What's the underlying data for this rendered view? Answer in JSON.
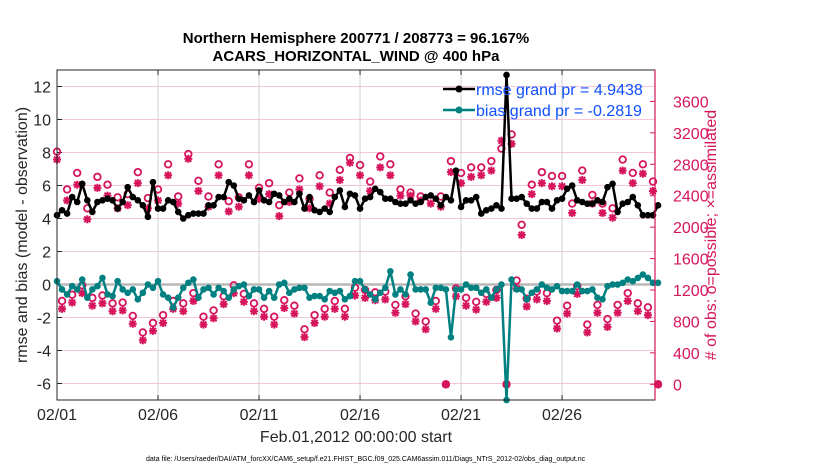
{
  "chart_data": {
    "type": "line",
    "title": [
      "Northern Hemisphere 200771 / 208773 = 96.167%",
      "ACARS_HORIZONTAL_WIND @ 400 hPa"
    ],
    "xlabel": "Feb.01,2012 00:00:00 start",
    "ylabel": "rmse and bias (model - observation)",
    "ylabel_right": "# of obs: o=possible; ×=assimilated",
    "footnote": "data file: /Users/raeder/DAI/ATM_forcXX/CAM6_setup/f.e21.FHIST_BGC.f09_025.CAM6assim.011/Diags_NTrS_2012-02/obs_diag_output.nc",
    "xlim": [
      0,
      29.6
    ],
    "ylim": [
      -7,
      13
    ],
    "ylim_right": [
      -200,
      4000
    ],
    "x_start_day": 0,
    "x_step_days": 0.25,
    "x_ticks": [
      0,
      5,
      10,
      15,
      20,
      25
    ],
    "x_tick_labels": [
      "02/01",
      "02/06",
      "02/11",
      "02/16",
      "02/21",
      "02/26"
    ],
    "y_ticks": [
      12,
      10,
      8,
      6,
      4,
      2,
      0,
      -2,
      -4,
      -6
    ],
    "y_tick_labels": [
      "12",
      "10",
      "8",
      "6",
      "4",
      "2",
      "0",
      "-2",
      "-4",
      "-6"
    ],
    "y_right_ticks": [
      3600,
      3200,
      2800,
      2400,
      2000,
      1600,
      1200,
      800,
      400,
      0
    ],
    "y_right_tick_labels": [
      "3600",
      "3200",
      "2800",
      "2400",
      "2000",
      "1600",
      "1200",
      "800",
      "400",
      "0"
    ],
    "grid": true,
    "legend_position": "top-right",
    "series": [
      {
        "name": "rmse grand pr = 4.9438",
        "color": "#000000",
        "axis": "left",
        "values": [
          4.2,
          4.5,
          4.3,
          5.3,
          5.0,
          6.1,
          5.1,
          4.4,
          5.0,
          5.1,
          5.2,
          5.1,
          4.6,
          5.0,
          5.9,
          5.3,
          5.1,
          4.8,
          4.1,
          6.2,
          4.6,
          4.6,
          5.1,
          5.0,
          4.4,
          4.0,
          4.2,
          4.3,
          4.3,
          4.3,
          4.8,
          4.8,
          5.3,
          5.3,
          6.2,
          6.0,
          5.2,
          5.1,
          5.4,
          5.0,
          5.7,
          5.1,
          5.0,
          5.5,
          5.4,
          5.0,
          5.2,
          5.0,
          5.5,
          4.6,
          5.3,
          4.5,
          4.4,
          4.6,
          4.4,
          5.3,
          5.7,
          4.7,
          5.5,
          5.4,
          4.6,
          5.2,
          5.3,
          5.8,
          5.6,
          5.2,
          5.2,
          5.0,
          4.9,
          4.9,
          5.1,
          4.9,
          5.0,
          5.3,
          5.4,
          5.2,
          4.8,
          5.3,
          5.1,
          6.9,
          4.7,
          5.1,
          5.1,
          5.3,
          4.3,
          4.5,
          4.6,
          4.8,
          4.6,
          12.7,
          5.2,
          5.2,
          5.3,
          4.9,
          4.6,
          4.6,
          5.0,
          5.0,
          4.6,
          5.1,
          5.2,
          5.8,
          6.0,
          5.1,
          5.0,
          4.9,
          4.9,
          5.1,
          5.0,
          5.9,
          6.1,
          4.4,
          4.9,
          5.0,
          5.3,
          4.8,
          4.2,
          4.2,
          4.2,
          4.8
        ]
      },
      {
        "name": "bias grand pr = -0.2819",
        "color": "#008080",
        "axis": "left",
        "values": [
          0.2,
          -0.3,
          -0.6,
          -0.1,
          -0.3,
          0.3,
          -0.8,
          -0.3,
          -0.1,
          0.4,
          -0.6,
          -0.7,
          0.2,
          -0.3,
          -0.5,
          -0.3,
          -0.9,
          -0.5,
          0.0,
          -0.2,
          0.2,
          -0.6,
          -0.8,
          -1.4,
          -0.8,
          -0.2,
          0.1,
          0.3,
          -0.8,
          -0.3,
          -0.2,
          -0.6,
          -0.2,
          -0.4,
          -0.8,
          -0.3,
          -0.1,
          0.0,
          -0.7,
          -0.3,
          -0.3,
          -0.8,
          -0.4,
          -0.8,
          0.0,
          0.1,
          -0.5,
          -0.3,
          -0.2,
          -0.2,
          -0.8,
          -0.7,
          -0.7,
          -0.9,
          -0.4,
          -0.5,
          -0.4,
          -0.9,
          -0.7,
          0.2,
          0.2,
          -0.3,
          -0.6,
          -0.9,
          -0.5,
          -0.2,
          0.8,
          -0.6,
          -0.3,
          -0.6,
          0.6,
          -0.3,
          -0.3,
          -0.3,
          -1.1,
          -0.2,
          -0.2,
          -0.3,
          -3.2,
          -0.3,
          -0.3,
          0.0,
          -0.2,
          -0.2,
          -0.5,
          -0.3,
          -0.8,
          -0.3,
          0.0,
          -7.0,
          0.3,
          -0.3,
          -0.3,
          -0.9,
          -0.5,
          -0.3,
          0.0,
          -0.2,
          -0.3,
          -0.1,
          -0.4,
          -0.4,
          -0.4,
          0.0,
          -0.4,
          -0.4,
          -0.3,
          -0.8,
          -0.9,
          -0.1,
          0.0,
          0.0,
          0.1,
          0.3,
          0.2,
          0.4,
          0.6,
          0.4,
          0.1,
          0.1
        ]
      },
      {
        "name": "possible",
        "color": "#D6145C",
        "axis": "right",
        "marker": "o",
        "values": [
          2960,
          1060,
          2480,
          1140,
          2690,
          1260,
          2240,
          1100,
          2640,
          1130,
          2540,
          1030,
          2380,
          1040,
          2420,
          870,
          2700,
          660,
          2370,
          780,
          2480,
          880,
          2800,
          1060,
          2390,
          1030,
          2930,
          1160,
          2590,
          860,
          2390,
          940,
          2800,
          1120,
          2330,
          1260,
          2380,
          1150,
          2800,
          1030,
          2500,
          960,
          2560,
          860,
          2280,
          1070,
          2440,
          1000,
          2620,
          700,
          2360,
          880,
          2660,
          960,
          2440,
          1060,
          2730,
          960,
          2880,
          1230,
          2790,
          1200,
          2580,
          1170,
          2900,
          1180,
          2800,
          1010,
          2480,
          1120,
          2440,
          900,
          2390,
          800,
          2360,
          1060,
          2390,
          0,
          2840,
          1220,
          2690,
          1100,
          2760,
          1050,
          2760,
          1150,
          2840,
          1200,
          3000,
          0,
          3180,
          1320,
          2030,
          1090,
          2540,
          1180,
          2700,
          1160,
          2650,
          810,
          2650,
          1000,
          2300,
          1250,
          2720,
          760,
          2410,
          1010,
          2300,
          830,
          2240,
          1010,
          2860,
          1160,
          2690,
          1030,
          2800,
          980,
          2580,
          0
        ]
      },
      {
        "name": "assimilated",
        "color": "#D6145C",
        "axis": "right",
        "marker": "*",
        "values": [
          2860,
          960,
          2340,
          1040,
          2540,
          1160,
          2100,
          1000,
          2500,
          1030,
          2400,
          930,
          2240,
          940,
          2280,
          770,
          2560,
          560,
          2240,
          680,
          2340,
          780,
          2660,
          960,
          2300,
          930,
          2870,
          1060,
          2460,
          760,
          2260,
          840,
          2660,
          1020,
          2200,
          1160,
          2260,
          1050,
          2660,
          930,
          2360,
          860,
          2420,
          760,
          2140,
          970,
          2320,
          900,
          2480,
          600,
          2240,
          780,
          2520,
          860,
          2300,
          960,
          2600,
          860,
          2820,
          1130,
          2660,
          1100,
          2460,
          1070,
          2760,
          1080,
          2660,
          910,
          2400,
          1020,
          2400,
          800,
          2340,
          700,
          2300,
          960,
          2260,
          0,
          2700,
          1120,
          2560,
          1000,
          2640,
          950,
          2660,
          1050,
          2720,
          1100,
          3100,
          0,
          3060,
          1220,
          1900,
          990,
          2420,
          1080,
          2560,
          1060,
          2520,
          710,
          2520,
          900,
          2180,
          1150,
          2600,
          660,
          2300,
          910,
          2180,
          730,
          2120,
          910,
          2720,
          1060,
          2560,
          930,
          2680,
          880,
          2460,
          0
        ]
      }
    ]
  }
}
